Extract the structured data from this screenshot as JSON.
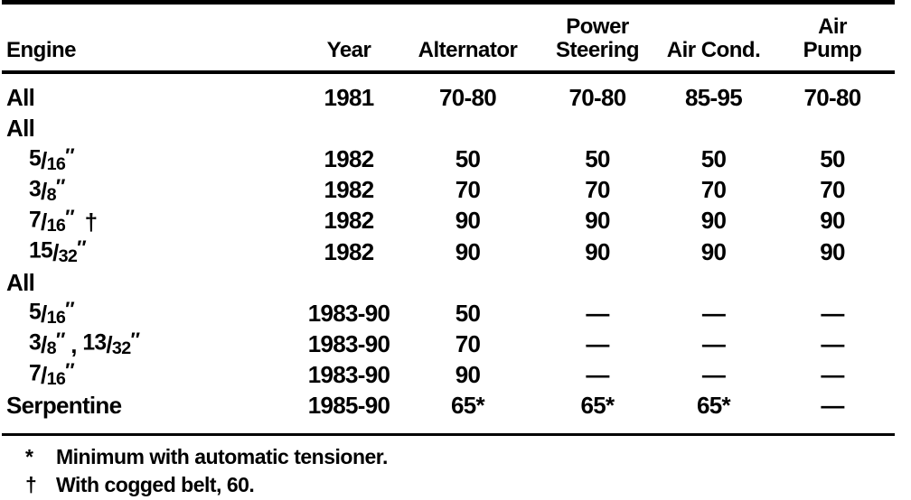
{
  "table": {
    "columns": [
      {
        "id": "engine",
        "lines": [
          "Engine"
        ]
      },
      {
        "id": "year",
        "lines": [
          "Year"
        ]
      },
      {
        "id": "alternator",
        "lines": [
          "Alternator"
        ]
      },
      {
        "id": "power-steering",
        "lines": [
          "Power",
          "Steering"
        ]
      },
      {
        "id": "air-cond",
        "lines": [
          "Air Cond."
        ]
      },
      {
        "id": "air-pump",
        "lines": [
          "Air",
          "Pump"
        ]
      }
    ],
    "rows": [
      {
        "engine": "All",
        "indent": 0,
        "values": [
          "1981",
          "70-80",
          "70-80",
          "85-95",
          "70-80"
        ]
      },
      {
        "engine": "All",
        "indent": 0,
        "values": [
          "",
          "",
          "",
          "",
          ""
        ]
      },
      {
        "engine": "5/16″",
        "indent": 1,
        "values": [
          "1982",
          "50",
          "50",
          "50",
          "50"
        ]
      },
      {
        "engine": "3/8″",
        "indent": 1,
        "values": [
          "1982",
          "70",
          "70",
          "70",
          "70"
        ]
      },
      {
        "engine": "7/16″ †",
        "indent": 1,
        "values": [
          "1982",
          "90",
          "90",
          "90",
          "90"
        ]
      },
      {
        "engine": "15/32″",
        "indent": 1,
        "values": [
          "1982",
          "90",
          "90",
          "90",
          "90"
        ]
      },
      {
        "engine": "All",
        "indent": 0,
        "values": [
          "",
          "",
          "",
          "",
          ""
        ]
      },
      {
        "engine": "5/16″",
        "indent": 1,
        "values": [
          "1983-90",
          "50",
          "—",
          "—",
          "—"
        ]
      },
      {
        "engine": "3/8″ , 13/32″",
        "indent": 1,
        "values": [
          "1983-90",
          "70",
          "—",
          "—",
          "—"
        ]
      },
      {
        "engine": "7/16″",
        "indent": 1,
        "values": [
          "1983-90",
          "90",
          "—",
          "—",
          "—"
        ]
      },
      {
        "engine": "Serpentine",
        "indent": 0,
        "values": [
          "1985-90",
          "65*",
          "65*",
          "65*",
          "—"
        ]
      }
    ]
  },
  "footnotes": [
    {
      "marker": "*",
      "text": "Minimum with automatic tensioner."
    },
    {
      "marker": "†",
      "text": "With cogged belt, 60."
    }
  ],
  "colors": {
    "ink": "#000000",
    "paper": "#ffffff"
  }
}
